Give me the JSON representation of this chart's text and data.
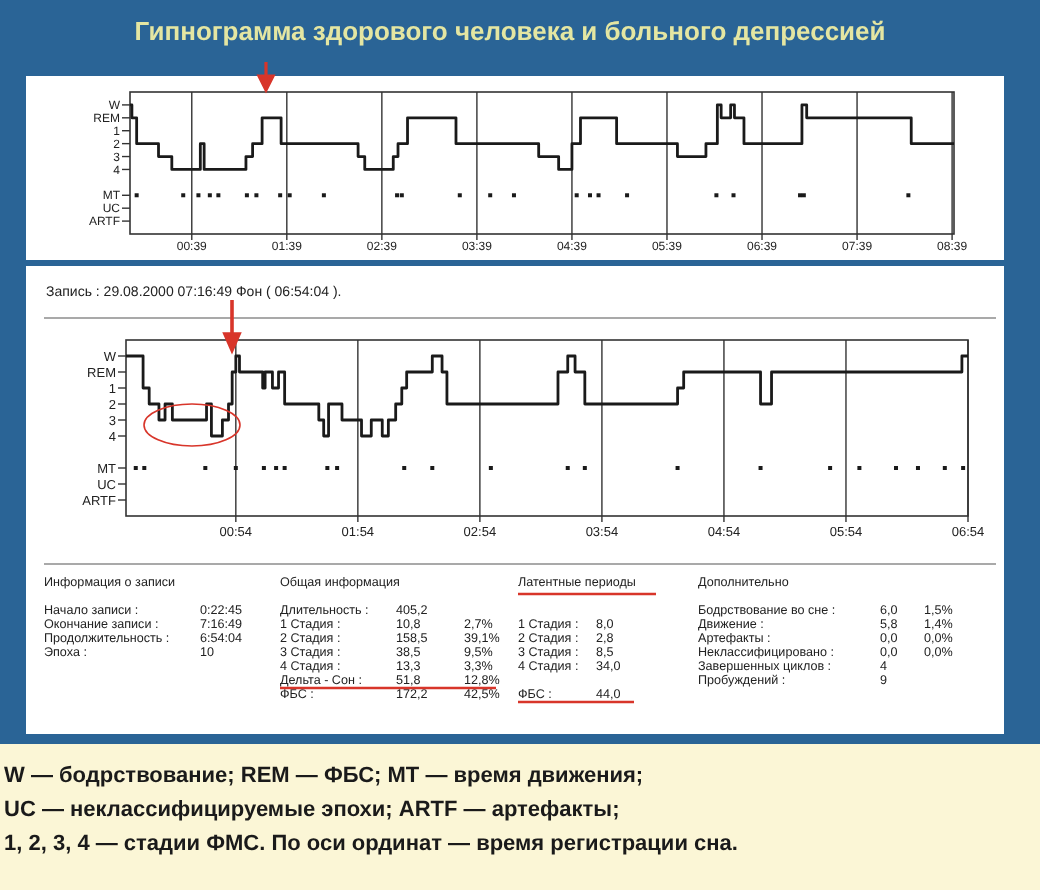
{
  "chart_data": [
    {
      "type": "step",
      "title": "Гипнограмма здорового человека и больного депрессией",
      "xlim": [
        0,
        8.67
      ],
      "xticks": [
        {
          "value": 0.65,
          "label": "00:39"
        },
        {
          "value": 1.65,
          "label": "01:39"
        },
        {
          "value": 2.65,
          "label": "02:39"
        },
        {
          "value": 3.65,
          "label": "03:39"
        },
        {
          "value": 4.65,
          "label": "04:39"
        },
        {
          "value": 5.65,
          "label": "05:39"
        },
        {
          "value": 6.65,
          "label": "06:39"
        },
        {
          "value": 7.65,
          "label": "07:39"
        },
        {
          "value": 8.65,
          "label": "08:39"
        }
      ],
      "ylim": [
        9,
        -2
      ],
      "yticks": [
        {
          "value": -1,
          "label": "W"
        },
        {
          "value": 0,
          "label": "REM"
        },
        1,
        2,
        3,
        4,
        {
          "value": 6,
          "label": "MT"
        },
        {
          "value": 7,
          "label": "UC"
        },
        {
          "value": 8,
          "label": "ARTF"
        }
      ],
      "grid": "x",
      "series": [
        {
          "type": "step",
          "color": "#1a1a1a",
          "x": [
            0,
            0.02,
            0.07,
            0.3,
            0.44,
            0.74,
            0.78,
            1.22,
            1.29,
            1.39,
            1.59,
            2.4,
            2.47,
            2.77,
            2.82,
            2.92,
            3.43,
            4.3,
            4.51,
            4.65,
            4.74,
            5.12,
            5.76,
            6.06,
            6.18,
            6.22,
            6.32,
            6.36,
            6.46,
            7.07,
            7.12,
            8.22,
            8.67
          ],
          "values": [
            -1,
            0,
            2,
            3,
            4,
            2,
            4,
            3,
            2,
            0,
            2,
            3,
            4,
            3,
            2,
            0,
            2,
            3,
            4,
            2,
            0,
            2,
            3,
            2,
            -1,
            0,
            -1,
            0,
            2,
            -1,
            0,
            2,
            2
          ]
        },
        {
          "type": "scatter",
          "marker": "square",
          "color": "#1a1a1a",
          "x": [
            0.07,
            0.56,
            0.72,
            0.84,
            0.93,
            1.23,
            1.33,
            1.58,
            1.68,
            2.04,
            2.81,
            2.86,
            3.47,
            3.79,
            4.04,
            4.7,
            4.84,
            4.93,
            5.23,
            6.17,
            6.35,
            7.05,
            7.09,
            8.19
          ],
          "values": [
            6,
            6,
            6,
            6,
            6,
            6,
            6,
            6,
            6,
            6,
            6,
            6,
            6,
            6,
            6,
            6,
            6,
            6,
            6,
            6,
            6,
            6,
            6,
            6
          ]
        }
      ]
    },
    {
      "type": "step",
      "xlim": [
        0,
        6.9
      ],
      "xticks": [
        {
          "value": 0.9,
          "label": "00:54"
        },
        {
          "value": 1.9,
          "label": "01:54"
        },
        {
          "value": 2.9,
          "label": "02:54"
        },
        {
          "value": 3.9,
          "label": "03:54"
        },
        {
          "value": 4.9,
          "label": "04:54"
        },
        {
          "value": 5.9,
          "label": "05:54"
        },
        {
          "value": 6.9,
          "label": "06:54"
        }
      ],
      "ylim": [
        9,
        -2
      ],
      "yticks": [
        {
          "value": -1,
          "label": "W"
        },
        {
          "value": 0,
          "label": "REM"
        },
        1,
        2,
        3,
        4,
        {
          "value": 6,
          "label": "MT"
        },
        {
          "value": 7,
          "label": "UC"
        },
        {
          "value": 8,
          "label": "ARTF"
        }
      ],
      "grid": "x",
      "series": [
        {
          "type": "step",
          "color": "#1a1a1a",
          "x": [
            0,
            0.14,
            0.19,
            0.27,
            0.32,
            0.38,
            0.66,
            0.7,
            0.79,
            0.84,
            0.87,
            0.9,
            0.93,
            1.12,
            1.14,
            1.2,
            1.25,
            1.3,
            1.58,
            1.62,
            1.66,
            1.77,
            1.93,
            2.01,
            2.1,
            2.15,
            2.21,
            2.26,
            2.3,
            2.51,
            2.59,
            2.63,
            3.54,
            3.62,
            3.68,
            3.76,
            4.52,
            4.57,
            5.2,
            5.29,
            6.85,
            6.9
          ],
          "values": [
            -1,
            1,
            2,
            3,
            2,
            3,
            2,
            4,
            3,
            2,
            0,
            -1,
            0,
            1,
            0,
            1,
            0,
            2,
            3,
            4,
            2,
            3,
            4,
            3,
            4,
            3,
            2,
            1,
            0,
            -1,
            0,
            2,
            0,
            -1,
            0,
            2,
            1,
            0,
            2,
            0,
            -1,
            -1
          ]
        },
        {
          "type": "scatter",
          "marker": "square",
          "color": "#1a1a1a",
          "x": [
            0.08,
            0.15,
            0.65,
            0.9,
            1.13,
            1.23,
            1.3,
            1.65,
            1.73,
            2.28,
            2.51,
            2.99,
            3.62,
            3.76,
            4.52,
            5.2,
            5.77,
            6.01,
            6.31,
            6.49,
            6.71,
            6.86
          ],
          "values": [
            6,
            6,
            6,
            6,
            6,
            6,
            6,
            6,
            6,
            6,
            6,
            6,
            6,
            6,
            6,
            6,
            6,
            6,
            6,
            6,
            6,
            6
          ]
        }
      ],
      "annotations": [
        "Запись : 29.08.2000 07:16:49 Фон ( 06:54:04 ).",
        "Информация о записи",
        "Начало записи :",
        "0:22:45",
        "Окончание записи :",
        "7:16:49",
        "Продолжительность :",
        "6:54:04",
        "Эпоха :",
        "10",
        "Общая информация",
        "Длительность :",
        "405,2",
        "1 Стадия :",
        "10,8",
        "2,7%",
        "2 Стадия :",
        "158,5",
        "39,1%",
        "3 Стадия :",
        "38,5",
        "9,5%",
        "4 Стадия :",
        "13,3",
        "3,3%",
        "Дельта - Сон :",
        "51,8",
        "12,8%",
        "ФБС :",
        "172,2",
        "42,5%",
        "Латентные периоды",
        "1 Стадия :",
        "8,0",
        "2 Стадия :",
        "2,8",
        "3 Стадия :",
        "8,5",
        "4 Стадия :",
        "34,0",
        "ФБС :",
        "44,0",
        "Дополнительно",
        "Бодрствование во сне :",
        "6,0",
        "1,5%",
        "Движение :",
        "5,8",
        "1,4%",
        "Артефакты :",
        "0,0",
        "0,0%",
        "Неклассифицировано :",
        "0,0",
        "0,0%",
        "Завершенных циклов :",
        "4",
        "Пробуждений :",
        "9",
        "W — бодрствование; REM — ФБС; MT — время движения;",
        "UC — неклассифицируемые эпохи; ARTF — артефакты;",
        "1, 2, 3, 4 — стадии ФМС. По оси ординат — время регистрации сна."
      ]
    }
  ]
}
